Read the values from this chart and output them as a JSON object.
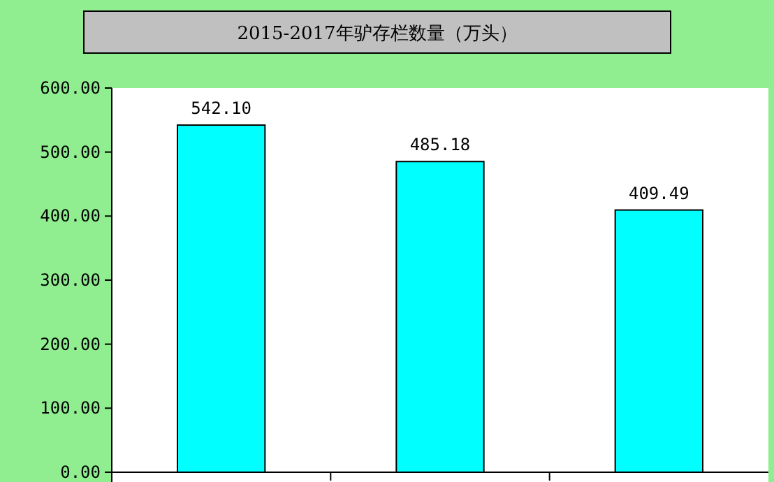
{
  "chart_data": {
    "type": "bar",
    "title": "2015-2017年驴存栏数量（万头）",
    "categories": [
      null,
      null,
      null
    ],
    "values": [
      542.1,
      485.18,
      409.49
    ],
    "color": "#00ffff",
    "data_labels": true,
    "ylim": [
      0,
      600
    ],
    "yticks": [
      {
        "value": 0,
        "label": "0.00"
      },
      {
        "value": 100,
        "label": "100.00"
      },
      {
        "value": 200,
        "label": "200.00"
      },
      {
        "value": 300,
        "label": "300.00"
      },
      {
        "value": 400,
        "label": "400.00"
      },
      {
        "value": 500,
        "label": "500.00"
      },
      {
        "value": 600,
        "label": "600.00"
      }
    ],
    "value_labels": [
      "542.10",
      "485.18",
      "409.49"
    ]
  }
}
